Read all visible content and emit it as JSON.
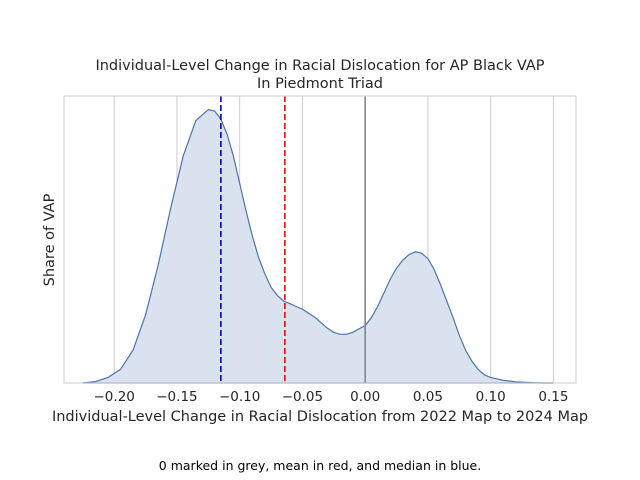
{
  "chart_data": {
    "type": "area",
    "title": [
      "Individual-Level Change in Racial Dislocation for AP Black VAP",
      "In Piedmont Triad"
    ],
    "xlabel": "Individual-Level Change in Racial Dislocation from 2022 Map to 2024 Map",
    "ylabel": "Share of VAP",
    "caption": "0 marked in grey, mean in red, and median in blue.",
    "xlim": [
      -0.24,
      0.168
    ],
    "ylim": [
      0,
      1.05
    ],
    "xticks": [
      -0.2,
      -0.15,
      -0.1,
      -0.05,
      0.0,
      0.05,
      0.1,
      0.15
    ],
    "xtick_labels": [
      "−0.20",
      "−0.15",
      "−0.10",
      "−0.05",
      "0.00",
      "0.05",
      "0.10",
      "0.15"
    ],
    "grid": true,
    "series": [
      {
        "x": [
          -0.225,
          -0.215,
          -0.205,
          -0.195,
          -0.185,
          -0.175,
          -0.165,
          -0.155,
          -0.145,
          -0.135,
          -0.125,
          -0.12,
          -0.115,
          -0.11,
          -0.105,
          -0.1,
          -0.095,
          -0.09,
          -0.085,
          -0.08,
          -0.075,
          -0.07,
          -0.065,
          -0.06,
          -0.055,
          -0.05,
          -0.045,
          -0.04,
          -0.035,
          -0.03,
          -0.025,
          -0.02,
          -0.015,
          -0.01,
          -0.005,
          0.0,
          0.005,
          0.01,
          0.015,
          0.02,
          0.025,
          0.03,
          0.035,
          0.04,
          0.045,
          0.05,
          0.055,
          0.06,
          0.065,
          0.07,
          0.075,
          0.08,
          0.085,
          0.09,
          0.095,
          0.1,
          0.11,
          0.12,
          0.13,
          0.14,
          0.15
        ],
        "values": [
          0.0,
          0.005,
          0.02,
          0.05,
          0.12,
          0.25,
          0.43,
          0.64,
          0.83,
          0.96,
          1.0,
          0.995,
          0.965,
          0.91,
          0.83,
          0.73,
          0.63,
          0.54,
          0.46,
          0.4,
          0.35,
          0.32,
          0.3,
          0.29,
          0.28,
          0.27,
          0.255,
          0.24,
          0.22,
          0.2,
          0.185,
          0.178,
          0.178,
          0.185,
          0.198,
          0.21,
          0.24,
          0.28,
          0.33,
          0.38,
          0.42,
          0.45,
          0.47,
          0.48,
          0.475,
          0.455,
          0.415,
          0.36,
          0.3,
          0.24,
          0.175,
          0.12,
          0.08,
          0.05,
          0.03,
          0.02,
          0.01,
          0.004,
          0.002,
          0.0,
          0.0
        ]
      }
    ],
    "vlines": [
      {
        "x": 0.0,
        "color": "#808080",
        "style": "solid"
      },
      {
        "x": -0.064,
        "color": "#ff0000",
        "style": "dashed"
      },
      {
        "x": -0.115,
        "color": "#0000cc",
        "style": "dashed"
      }
    ],
    "colors": {
      "line": "#4c72b0",
      "fill": "#dbe2ef",
      "grid": "#cccccc",
      "frame": "#cccccc"
    }
  }
}
